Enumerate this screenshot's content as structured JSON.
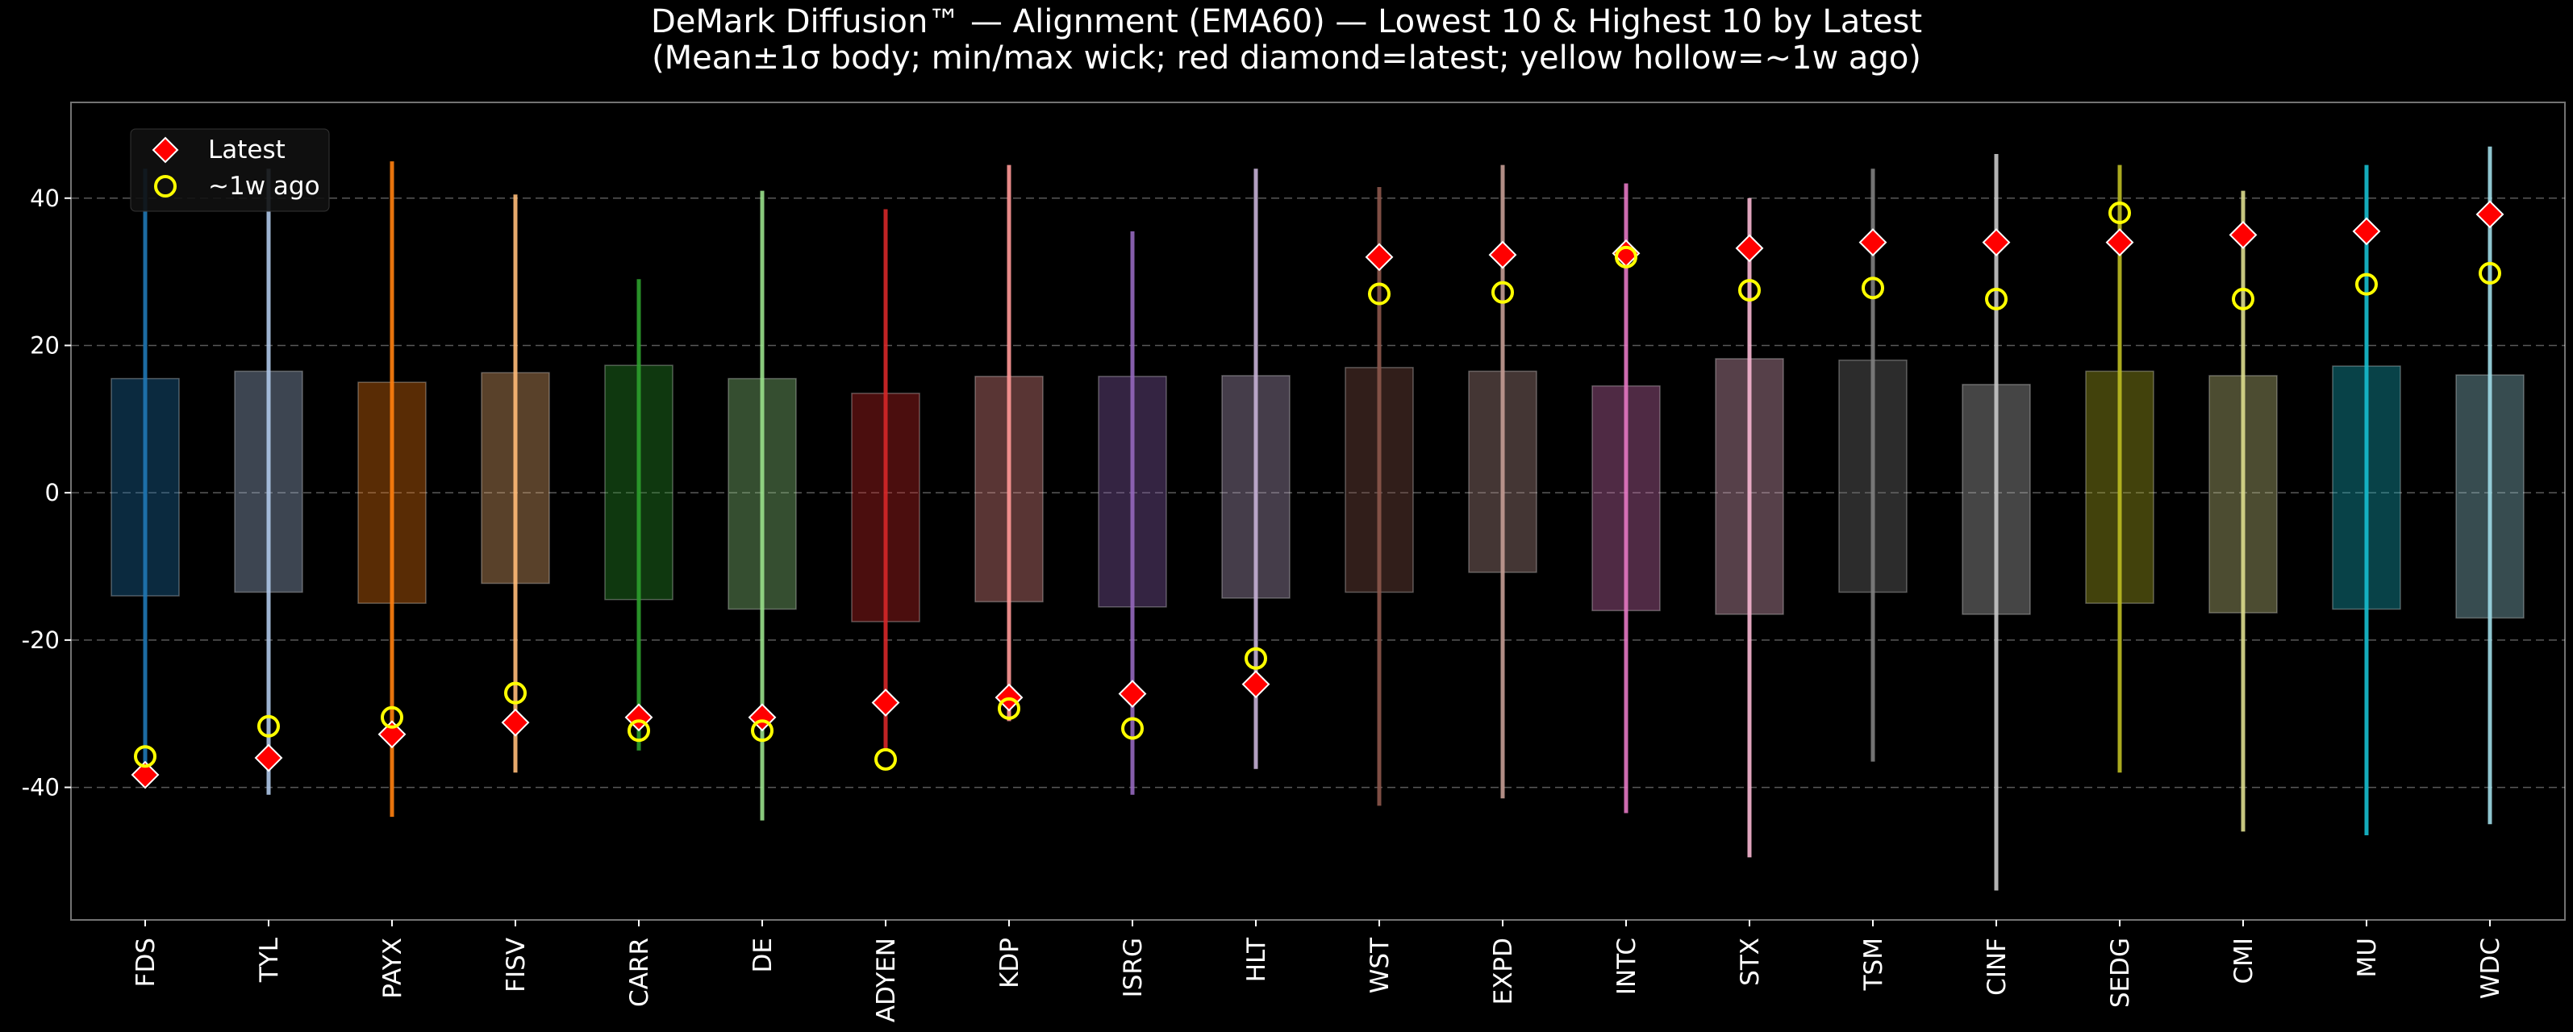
{
  "chart_data": {
    "type": "boxplot",
    "title": "DeMark Diffusion™ — Alignment (EMA60) — Lowest 10 & Highest 10 by Latest",
    "subtitle": "(Mean±1σ body; min/max wick; red diamond=latest; yellow hollow=~1w ago)",
    "xlabel": "",
    "ylabel": "",
    "ylim": [
      -58,
      53
    ],
    "yticks": [
      -40,
      -20,
      0,
      20,
      40
    ],
    "grid": "horizontal dashed",
    "legend": {
      "placement": "top-left",
      "entries": [
        {
          "label": "Latest",
          "marker": "red-diamond"
        },
        {
          "label": "~1w ago",
          "marker": "yellow-hollow-circle"
        }
      ]
    },
    "marker_colors": {
      "latest": "#ff0000",
      "week_ago": "#ffff00"
    },
    "categories": [
      "FDS",
      "TYL",
      "PAYX",
      "FISV",
      "CARR",
      "DE",
      "ADYEN",
      "KDP",
      "ISRG",
      "HLT",
      "WST",
      "EXPD",
      "INTC",
      "STX",
      "TSM",
      "CINF",
      "SEDG",
      "CMI",
      "MU",
      "WDC"
    ],
    "series": [
      {
        "name": "FDS",
        "color": "#1f77b4",
        "mean_minus_sd": -14.0,
        "mean_plus_sd": 15.5,
        "min": -38.0,
        "max": 44.0,
        "latest": -38.3,
        "week_ago": -35.8
      },
      {
        "name": "TYL",
        "color": "#aec7e8",
        "mean_minus_sd": -13.5,
        "mean_plus_sd": 16.5,
        "min": -41.0,
        "max": 44.0,
        "latest": -36.0,
        "week_ago": -31.7
      },
      {
        "name": "PAYX",
        "color": "#ff7f0e",
        "mean_minus_sd": -15.0,
        "mean_plus_sd": 15.0,
        "min": -44.0,
        "max": 45.0,
        "latest": -32.8,
        "week_ago": -30.5
      },
      {
        "name": "FISV",
        "color": "#ffbb78",
        "mean_minus_sd": -12.3,
        "mean_plus_sd": 16.3,
        "min": -38.0,
        "max": 40.5,
        "latest": -31.2,
        "week_ago": -27.2
      },
      {
        "name": "CARR",
        "color": "#2ca02c",
        "mean_minus_sd": -14.5,
        "mean_plus_sd": 17.3,
        "min": -35.0,
        "max": 29.0,
        "latest": -30.5,
        "week_ago": -32.3
      },
      {
        "name": "DE",
        "color": "#98df8a",
        "mean_minus_sd": -15.8,
        "mean_plus_sd": 15.5,
        "min": -44.5,
        "max": 41.0,
        "latest": -30.5,
        "week_ago": -32.3
      },
      {
        "name": "ADYEN",
        "color": "#d62728",
        "mean_minus_sd": -17.5,
        "mean_plus_sd": 13.5,
        "min": -35.0,
        "max": 38.5,
        "latest": -28.5,
        "week_ago": -36.2
      },
      {
        "name": "KDP",
        "color": "#ff9896",
        "mean_minus_sd": -14.8,
        "mean_plus_sd": 15.8,
        "min": -31.0,
        "max": 44.5,
        "latest": -27.8,
        "week_ago": -29.3
      },
      {
        "name": "ISRG",
        "color": "#9467bd",
        "mean_minus_sd": -15.5,
        "mean_plus_sd": 15.8,
        "min": -41.0,
        "max": 35.5,
        "latest": -27.3,
        "week_ago": -32.0
      },
      {
        "name": "HLT",
        "color": "#c5b0d5",
        "mean_minus_sd": -14.3,
        "mean_plus_sd": 15.9,
        "min": -37.5,
        "max": 44.0,
        "latest": -26.0,
        "week_ago": -22.5
      },
      {
        "name": "WST",
        "color": "#8c564b",
        "mean_minus_sd": -13.5,
        "mean_plus_sd": 17.0,
        "min": -42.5,
        "max": 41.5,
        "latest": 32.0,
        "week_ago": 27.0
      },
      {
        "name": "EXPD",
        "color": "#c49c94",
        "mean_minus_sd": -10.8,
        "mean_plus_sd": 16.5,
        "min": -41.5,
        "max": 44.5,
        "latest": 32.3,
        "week_ago": 27.2
      },
      {
        "name": "INTC",
        "color": "#e377c2",
        "mean_minus_sd": -16.0,
        "mean_plus_sd": 14.5,
        "min": -43.5,
        "max": 42.0,
        "latest": 32.5,
        "week_ago": 32.0
      },
      {
        "name": "STX",
        "color": "#f7b6d2",
        "mean_minus_sd": -16.5,
        "mean_plus_sd": 18.2,
        "min": -49.5,
        "max": 40.0,
        "latest": 33.2,
        "week_ago": 27.5
      },
      {
        "name": "TSM",
        "color": "#7f7f7f",
        "mean_minus_sd": -13.5,
        "mean_plus_sd": 18.0,
        "min": -36.5,
        "max": 44.0,
        "latest": 34.0,
        "week_ago": 27.8
      },
      {
        "name": "CINF",
        "color": "#c7c7c7",
        "mean_minus_sd": -16.5,
        "mean_plus_sd": 14.7,
        "min": -54.0,
        "max": 46.0,
        "latest": 34.0,
        "week_ago": 26.3
      },
      {
        "name": "SEDG",
        "color": "#bcbd22",
        "mean_minus_sd": -15.0,
        "mean_plus_sd": 16.5,
        "min": -38.0,
        "max": 44.5,
        "latest": 34.0,
        "week_ago": 38.0
      },
      {
        "name": "CMI",
        "color": "#dbdb8d",
        "mean_minus_sd": -16.3,
        "mean_plus_sd": 15.9,
        "min": -46.0,
        "max": 41.0,
        "latest": 35.0,
        "week_ago": 26.3
      },
      {
        "name": "MU",
        "color": "#17becf",
        "mean_minus_sd": -15.8,
        "mean_plus_sd": 17.2,
        "min": -46.5,
        "max": 44.5,
        "latest": 35.5,
        "week_ago": 28.3
      },
      {
        "name": "WDC",
        "color": "#9edae5",
        "mean_minus_sd": -17.0,
        "mean_plus_sd": 16.0,
        "min": -45.0,
        "max": 47.0,
        "latest": 37.8,
        "week_ago": 29.8
      }
    ]
  }
}
